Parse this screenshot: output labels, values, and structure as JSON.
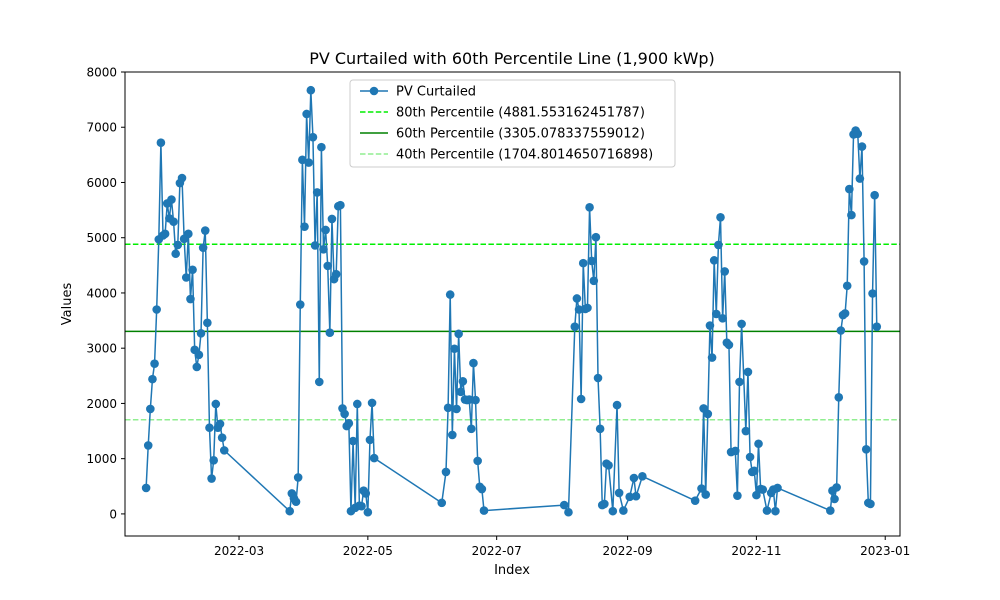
{
  "chart_data": {
    "type": "line",
    "title": "PV Curtailed with 60th Percentile Line (1,900 kWp)",
    "xlabel": "Index",
    "ylabel": "Values",
    "xlim": [
      "2022-01-06",
      "2023-01-08"
    ],
    "ylim": [
      -400,
      8000
    ],
    "x_ticks": [
      "2022-03-01",
      "2022-05-01",
      "2022-07-01",
      "2022-09-01",
      "2022-11-01",
      "2023-01-01"
    ],
    "x_tick_labels": [
      "2022-03",
      "2022-05",
      "2022-07",
      "2022-09",
      "2022-11",
      "2023-01"
    ],
    "y_ticks": [
      0,
      1000,
      2000,
      3000,
      4000,
      5000,
      6000,
      7000,
      8000
    ],
    "y_tick_labels": [
      "0",
      "1000",
      "2000",
      "3000",
      "4000",
      "5000",
      "6000",
      "7000",
      "8000"
    ],
    "grid": false,
    "legend_position": "top-center",
    "series": [
      {
        "name": "PV Curtailed",
        "color": "#1f77b4",
        "marker": "circle",
        "points": [
          [
            "2022-01-16",
            470
          ],
          [
            "2022-01-17",
            1240
          ],
          [
            "2022-01-18",
            1900
          ],
          [
            "2022-01-19",
            2440
          ],
          [
            "2022-01-20",
            2720
          ],
          [
            "2022-01-21",
            3700
          ],
          [
            "2022-01-22",
            4970
          ],
          [
            "2022-01-23",
            6720
          ],
          [
            "2022-01-24",
            5040
          ],
          [
            "2022-01-25",
            5070
          ],
          [
            "2022-01-26",
            5620
          ],
          [
            "2022-01-27",
            5350
          ],
          [
            "2022-01-28",
            5690
          ],
          [
            "2022-01-29",
            5290
          ],
          [
            "2022-01-30",
            4710
          ],
          [
            "2022-01-31",
            4870
          ],
          [
            "2022-02-01",
            5990
          ],
          [
            "2022-02-02",
            6080
          ],
          [
            "2022-02-03",
            4980
          ],
          [
            "2022-02-04",
            4280
          ],
          [
            "2022-02-05",
            5070
          ],
          [
            "2022-02-06",
            3890
          ],
          [
            "2022-02-07",
            4420
          ],
          [
            "2022-02-08",
            2970
          ],
          [
            "2022-02-09",
            2660
          ],
          [
            "2022-02-10",
            2880
          ],
          [
            "2022-02-11",
            3270
          ],
          [
            "2022-02-12",
            4820
          ],
          [
            "2022-02-13",
            5130
          ],
          [
            "2022-02-14",
            3460
          ],
          [
            "2022-02-15",
            1560
          ],
          [
            "2022-02-16",
            640
          ],
          [
            "2022-02-17",
            970
          ],
          [
            "2022-02-18",
            1990
          ],
          [
            "2022-02-19",
            1560
          ],
          [
            "2022-02-20",
            1630
          ],
          [
            "2022-02-21",
            1380
          ],
          [
            "2022-02-22",
            1150
          ],
          [
            "2022-03-25",
            50
          ],
          [
            "2022-03-26",
            370
          ],
          [
            "2022-03-27",
            280
          ],
          [
            "2022-03-28",
            220
          ],
          [
            "2022-03-29",
            660
          ],
          [
            "2022-03-30",
            3790
          ],
          [
            "2022-03-31",
            6410
          ],
          [
            "2022-04-01",
            5200
          ],
          [
            "2022-04-02",
            7240
          ],
          [
            "2022-04-03",
            6360
          ],
          [
            "2022-04-04",
            7670
          ],
          [
            "2022-04-05",
            6820
          ],
          [
            "2022-04-06",
            4860
          ],
          [
            "2022-04-07",
            5820
          ],
          [
            "2022-04-08",
            2390
          ],
          [
            "2022-04-09",
            6640
          ],
          [
            "2022-04-10",
            4790
          ],
          [
            "2022-04-11",
            5140
          ],
          [
            "2022-04-12",
            4490
          ],
          [
            "2022-04-13",
            3280
          ],
          [
            "2022-04-14",
            5340
          ],
          [
            "2022-04-15",
            4250
          ],
          [
            "2022-04-16",
            4340
          ],
          [
            "2022-04-17",
            5570
          ],
          [
            "2022-04-18",
            5590
          ],
          [
            "2022-04-19",
            1910
          ],
          [
            "2022-04-20",
            1810
          ],
          [
            "2022-04-21",
            1590
          ],
          [
            "2022-04-22",
            1640
          ],
          [
            "2022-04-23",
            50
          ],
          [
            "2022-04-24",
            1320
          ],
          [
            "2022-04-25",
            110
          ],
          [
            "2022-04-26",
            1990
          ],
          [
            "2022-04-27",
            150
          ],
          [
            "2022-04-28",
            140
          ],
          [
            "2022-04-29",
            420
          ],
          [
            "2022-04-30",
            370
          ],
          [
            "2022-05-01",
            30
          ],
          [
            "2022-05-02",
            1340
          ],
          [
            "2022-05-03",
            2010
          ],
          [
            "2022-05-04",
            1010
          ],
          [
            "2022-06-05",
            200
          ],
          [
            "2022-06-07",
            760
          ],
          [
            "2022-06-08",
            1920
          ],
          [
            "2022-06-09",
            3970
          ],
          [
            "2022-06-10",
            1430
          ],
          [
            "2022-06-11",
            2990
          ],
          [
            "2022-06-12",
            1900
          ],
          [
            "2022-06-13",
            3260
          ],
          [
            "2022-06-14",
            2210
          ],
          [
            "2022-06-15",
            2400
          ],
          [
            "2022-06-16",
            2070
          ],
          [
            "2022-06-17",
            2060
          ],
          [
            "2022-06-18",
            2070
          ],
          [
            "2022-06-19",
            1540
          ],
          [
            "2022-06-20",
            2730
          ],
          [
            "2022-06-21",
            2060
          ],
          [
            "2022-06-22",
            960
          ],
          [
            "2022-06-23",
            490
          ],
          [
            "2022-06-24",
            450
          ],
          [
            "2022-06-25",
            60
          ],
          [
            "2022-08-02",
            160
          ],
          [
            "2022-08-04",
            30
          ],
          [
            "2022-08-07",
            3390
          ],
          [
            "2022-08-08",
            3900
          ],
          [
            "2022-08-09",
            3700
          ],
          [
            "2022-08-10",
            2080
          ],
          [
            "2022-08-11",
            4540
          ],
          [
            "2022-08-12",
            3710
          ],
          [
            "2022-08-13",
            3730
          ],
          [
            "2022-08-14",
            5550
          ],
          [
            "2022-08-15",
            4580
          ],
          [
            "2022-08-16",
            4220
          ],
          [
            "2022-08-17",
            5010
          ],
          [
            "2022-08-18",
            2460
          ],
          [
            "2022-08-19",
            1540
          ],
          [
            "2022-08-20",
            160
          ],
          [
            "2022-08-21",
            180
          ],
          [
            "2022-08-22",
            910
          ],
          [
            "2022-08-23",
            880
          ],
          [
            "2022-08-25",
            50
          ],
          [
            "2022-08-27",
            1970
          ],
          [
            "2022-08-28",
            380
          ],
          [
            "2022-08-30",
            60
          ],
          [
            "2022-09-02",
            310
          ],
          [
            "2022-09-04",
            650
          ],
          [
            "2022-09-05",
            320
          ],
          [
            "2022-09-08",
            680
          ],
          [
            "2022-10-03",
            240
          ],
          [
            "2022-10-06",
            460
          ],
          [
            "2022-10-07",
            1910
          ],
          [
            "2022-10-08",
            350
          ],
          [
            "2022-10-09",
            1810
          ],
          [
            "2022-10-10",
            3410
          ],
          [
            "2022-10-11",
            2830
          ],
          [
            "2022-10-12",
            4590
          ],
          [
            "2022-10-13",
            3620
          ],
          [
            "2022-10-14",
            4870
          ],
          [
            "2022-10-15",
            5370
          ],
          [
            "2022-10-16",
            3540
          ],
          [
            "2022-10-17",
            4390
          ],
          [
            "2022-10-18",
            3100
          ],
          [
            "2022-10-19",
            3060
          ],
          [
            "2022-10-20",
            1120
          ],
          [
            "2022-10-22",
            1140
          ],
          [
            "2022-10-23",
            330
          ],
          [
            "2022-10-24",
            2390
          ],
          [
            "2022-10-25",
            3440
          ],
          [
            "2022-10-27",
            1500
          ],
          [
            "2022-10-28",
            2570
          ],
          [
            "2022-10-29",
            1030
          ],
          [
            "2022-10-30",
            760
          ],
          [
            "2022-10-31",
            780
          ],
          [
            "2022-11-01",
            340
          ],
          [
            "2022-11-02",
            1270
          ],
          [
            "2022-11-03",
            450
          ],
          [
            "2022-11-04",
            440
          ],
          [
            "2022-11-06",
            60
          ],
          [
            "2022-11-08",
            380
          ],
          [
            "2022-11-09",
            440
          ],
          [
            "2022-11-10",
            50
          ],
          [
            "2022-11-11",
            470
          ],
          [
            "2022-12-06",
            60
          ],
          [
            "2022-12-07",
            420
          ],
          [
            "2022-12-08",
            270
          ],
          [
            "2022-12-09",
            480
          ],
          [
            "2022-12-10",
            2110
          ],
          [
            "2022-12-11",
            3320
          ],
          [
            "2022-12-12",
            3600
          ],
          [
            "2022-12-13",
            3630
          ],
          [
            "2022-12-14",
            4130
          ],
          [
            "2022-12-15",
            5880
          ],
          [
            "2022-12-16",
            5410
          ],
          [
            "2022-12-17",
            6870
          ],
          [
            "2022-12-18",
            6940
          ],
          [
            "2022-12-19",
            6880
          ],
          [
            "2022-12-20",
            6070
          ],
          [
            "2022-12-21",
            6650
          ],
          [
            "2022-12-22",
            4570
          ],
          [
            "2022-12-23",
            1170
          ],
          [
            "2022-12-24",
            200
          ],
          [
            "2022-12-25",
            180
          ],
          [
            "2022-12-26",
            3990
          ],
          [
            "2022-12-27",
            5770
          ],
          [
            "2022-12-28",
            3390
          ]
        ]
      }
    ],
    "reference_lines": [
      {
        "name": "80th Percentile (4881.553162451787)",
        "value": 4881.553162451787,
        "color": "#00ee00",
        "style": "dashed"
      },
      {
        "name": "60th Percentile (3305.078337559012)",
        "value": 3305.078337559012,
        "color": "#008000",
        "style": "solid"
      },
      {
        "name": "40th Percentile (1704.8014650716898)",
        "value": 1704.8014650716898,
        "color": "#90ee90",
        "style": "dashed"
      }
    ]
  }
}
